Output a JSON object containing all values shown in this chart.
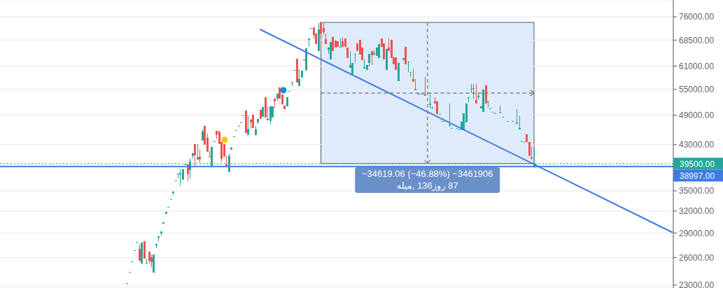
{
  "chart_data": {
    "type": "candlestick",
    "categories": [
      null,
      null,
      null,
      null,
      null,
      null,
      null,
      null,
      null,
      null,
      null,
      null,
      null,
      null,
      null,
      null,
      null,
      null,
      null,
      null,
      null,
      null,
      null,
      null,
      null,
      null,
      null,
      null,
      null,
      null,
      null,
      null,
      null,
      null,
      null,
      null,
      null,
      null,
      null,
      null,
      null,
      null,
      null,
      null,
      null,
      null,
      null,
      null,
      null,
      null,
      null,
      null,
      null,
      null,
      null,
      null,
      null,
      null,
      null,
      null,
      null,
      null,
      null,
      null,
      null,
      null,
      null,
      null,
      null,
      null,
      null,
      null,
      null,
      null,
      null,
      null,
      null,
      null,
      null,
      null,
      null,
      null,
      null,
      null,
      null,
      null,
      null,
      null,
      null,
      null,
      null,
      null,
      null,
      null,
      null,
      null,
      null,
      null,
      null,
      null,
      null,
      null,
      null,
      null,
      null,
      null,
      null,
      null,
      null,
      null,
      null,
      null,
      null,
      null,
      null,
      null,
      null,
      null,
      null,
      null,
      null,
      null,
      null,
      null,
      null,
      null,
      null,
      null,
      null,
      null,
      null,
      null,
      null,
      null,
      null,
      null,
      null,
      null,
      null,
      null,
      null,
      null,
      null,
      null,
      null,
      null,
      null,
      null,
      null,
      null,
      null,
      null,
      null,
      null,
      null,
      null,
      null,
      null,
      null,
      null,
      null,
      null,
      null,
      null,
      null,
      null,
      null,
      null,
      null,
      null,
      null,
      null,
      null,
      null,
      null,
      null,
      null,
      null,
      null,
      null,
      null,
      null,
      null,
      null,
      null,
      null,
      null,
      null,
      null,
      null,
      null,
      null,
      null,
      null,
      null,
      null,
      null,
      null,
      null,
      null,
      null,
      null,
      null,
      null,
      null,
      null,
      null,
      null,
      null,
      null,
      null,
      null,
      null,
      null,
      null,
      null,
      null,
      null,
      null,
      null,
      null,
      null,
      null,
      null,
      null,
      null,
      null,
      null,
      null,
      null,
      null,
      null,
      null,
      null,
      null,
      null,
      null,
      null,
      null,
      null,
      null,
      null,
      null,
      null,
      null,
      null,
      null,
      null,
      null,
      null,
      null,
      null,
      null,
      null,
      null,
      null,
      null,
      null,
      null,
      null,
      null,
      null,
      null,
      null,
      null,
      null,
      null,
      null,
      null,
      null,
      null,
      null,
      null,
      null,
      null,
      null,
      null,
      null
    ],
    "ohlc": [
      null,
      null,
      null,
      null,
      null,
      null,
      null,
      null,
      null,
      null,
      null,
      null,
      null,
      null,
      null,
      null,
      null,
      null,
      null,
      null,
      null,
      null,
      null,
      null,
      null,
      null,
      null,
      null,
      null,
      null,
      null,
      null,
      null,
      null,
      null,
      null,
      null,
      null,
      null,
      null,
      null,
      null,
      null,
      null,
      null,
      null,
      null,
      null,
      null,
      null,
      null,
      null,
      [
        23200,
        23200,
        23200,
        23200
      ],
      [
        24340,
        24340,
        24340,
        24340
      ],
      [
        25510,
        25510,
        25510,
        25510
      ],
      [
        26790,
        26790,
        26790,
        26790
      ],
      [
        27800,
        27800,
        27800,
        27800
      ],
      [
        27010,
        27520,
        25620,
        25620
      ],
      [
        25300,
        27780,
        25300,
        27780
      ],
      [
        27950,
        27950,
        25860,
        25860
      ],
      [
        25380,
        25860,
        25300,
        25400
      ],
      [
        26680,
        26680,
        25300,
        25620
      ],
      [
        26020,
        26350,
        24910,
        25460
      ],
      [
        24300,
        26350,
        24300,
        26350
      ],
      [
        27450,
        27610,
        27100,
        27610
      ],
      [
        28400,
        28570,
        27950,
        28570
      ],
      [
        28900,
        29200,
        28660,
        29200
      ],
      [
        30220,
        30410,
        30220,
        30410
      ],
      [
        31570,
        31870,
        31570,
        31870
      ],
      [
        32570,
        32570,
        32570,
        32570
      ],
      [
        33710,
        33710,
        33710,
        33710
      ],
      [
        34700,
        34880,
        34350,
        34880
      ],
      [
        36660,
        36660,
        36660,
        36660
      ],
      [
        37700,
        37820,
        37000,
        37820
      ],
      [
        37600,
        38540,
        35760,
        37820
      ],
      [
        36780,
        38540,
        36780,
        38540
      ],
      [
        39390,
        39390,
        39390,
        39390
      ],
      [
        39390,
        39390,
        36550,
        37700
      ],
      [
        38420,
        40510,
        36890,
        39880
      ],
      [
        40900,
        41400,
        40380,
        41400
      ],
      [
        43110,
        43110,
        39150,
        41020
      ],
      [
        40250,
        43110,
        40130,
        40640
      ],
      [
        40760,
        42050,
        39630,
        40250
      ],
      [
        43780,
        46030,
        43780,
        45600
      ],
      [
        46750,
        46750,
        42970,
        42970
      ],
      [
        44330,
        45170,
        41660,
        41660
      ],
      [
        40760,
        41790,
        40640,
        40640
      ],
      [
        38900,
        42570,
        38900,
        42570
      ],
      [
        43650,
        43650,
        43650,
        43650
      ],
      [
        45740,
        45740,
        44060,
        44890
      ],
      [
        45600,
        45600,
        43110,
        43110
      ],
      [
        43510,
        43510,
        39880,
        40380
      ],
      [
        43110,
        43110,
        40760,
        40760
      ],
      [
        39390,
        40890,
        39030,
        39030
      ],
      [
        38060,
        41270,
        38060,
        40890
      ],
      [
        42050,
        42440,
        42050,
        42440
      ],
      [
        44610,
        44610,
        44610,
        44610
      ],
      [
        45880,
        45880,
        45880,
        45880
      ],
      [
        46750,
        46750,
        46750,
        46750
      ],
      [
        47480,
        47480,
        47480,
        47480
      ],
      [
        48970,
        48970,
        48970,
        48970
      ],
      [
        50060,
        50060,
        45310,
        45310
      ],
      [
        44890,
        48970,
        44890,
        46030
      ],
      [
        48070,
        48070,
        46170,
        47480
      ],
      [
        49130,
        49130,
        46310,
        46310
      ],
      [
        44890,
        46750,
        44750,
        46030
      ],
      [
        47480,
        48220,
        47180,
        48220
      ],
      [
        50210,
        50210,
        48220,
        48220
      ],
      [
        48670,
        50840,
        48670,
        50840
      ],
      [
        53120,
        53120,
        48520,
        48520
      ],
      [
        47930,
        50840,
        47930,
        48220
      ],
      [
        47780,
        51000,
        47030,
        51000
      ],
      [
        48520,
        51000,
        48520,
        51000
      ],
      [
        52790,
        52790,
        50530,
        52140
      ],
      [
        52790,
        53950,
        52300,
        53950
      ],
      [
        55480,
        55480,
        52790,
        52790
      ],
      [
        53790,
        53790,
        51300,
        51470
      ],
      [
        51150,
        51150,
        50370,
        50370
      ],
      [
        51000,
        53120,
        51000,
        53120
      ],
      [
        54630,
        54630,
        54630,
        54630
      ],
      [
        56700,
        56880,
        55830,
        56880
      ],
      [
        59970,
        59970,
        59970,
        59970
      ],
      [
        63050,
        63050,
        56700,
        56700
      ],
      [
        55830,
        60170,
        55830,
        57600
      ],
      [
        57960,
        59780,
        57960,
        59780
      ],
      [
        62660,
        62860,
        62460,
        62860
      ],
      [
        59970,
        66050,
        59600,
        66050
      ],
      [
        68500,
        69000,
        66470,
        69000
      ],
      [
        72300,
        72300,
        72300,
        72300
      ],
      [
        72530,
        72530,
        69000,
        70090
      ],
      [
        70530,
        70530,
        67300,
        67300
      ],
      [
        65240,
        73900,
        65240,
        71860
      ],
      [
        74130,
        74130,
        70530,
        70530
      ],
      [
        72300,
        73900,
        70090,
        70970
      ],
      [
        68790,
        70530,
        67300,
        67300
      ],
      [
        65650,
        66260,
        64500,
        66260
      ],
      [
        62850,
        67940,
        62850,
        67940
      ],
      [
        69460,
        69460,
        65240,
        65240
      ],
      [
        68360,
        68360,
        66260,
        66260
      ],
      [
        68150,
        68150,
        66470,
        66470
      ],
      [
        66260,
        69000,
        66260,
        66470
      ],
      [
        68150,
        69460,
        66470,
        66470
      ],
      [
        69000,
        69000,
        66470,
        66470
      ],
      [
        66260,
        66260,
        63240,
        63240
      ],
      [
        60540,
        65240,
        60540,
        61300
      ],
      [
        58860,
        61870,
        58860,
        61870
      ],
      [
        64200,
        64500,
        61870,
        64500
      ],
      [
        67510,
        67510,
        65240,
        65240
      ],
      [
        68580,
        68580,
        64300,
        64300
      ],
      [
        66260,
        66260,
        62660,
        62660
      ],
      [
        60360,
        62850,
        60360,
        60730
      ],
      [
        59970,
        61300,
        59970,
        61300
      ],
      [
        61870,
        64500,
        60920,
        64500
      ],
      [
        65240,
        65240,
        61300,
        64030
      ],
      [
        64300,
        65440,
        64100,
        64700
      ],
      [
        63830,
        66260,
        63830,
        66260
      ],
      [
        63240,
        67300,
        63240,
        67300
      ],
      [
        69000,
        69000,
        66470,
        66470
      ],
      [
        67510,
        67510,
        62850,
        62850
      ],
      [
        59970,
        65850,
        59970,
        65850
      ],
      [
        66260,
        69000,
        65240,
        65240
      ],
      [
        68580,
        68580,
        63240,
        63240
      ],
      [
        63430,
        63430,
        61490,
        61490
      ],
      [
        63430,
        63430,
        59970,
        59970
      ],
      [
        57070,
        61870,
        57070,
        61870
      ],
      null,
      [
        62900,
        63240,
        62460,
        63240
      ],
      [
        66470,
        66470,
        61490,
        61490
      ],
      [
        62000,
        62260,
        59420,
        62260
      ],
      [
        59200,
        59420,
        58140,
        59420
      ],
      [
        57600,
        60170,
        56880,
        56880
      ],
      [
        55140,
        57600,
        54800,
        54800
      ],
      [
        53790,
        53790,
        53790,
        53790
      ],
      [
        53790,
        53790,
        53790,
        53790
      ],
      [
        53790,
        53790,
        53790,
        53790
      ],
      [
        53790,
        58140,
        53450,
        53450
      ],
      null,
      [
        51320,
        54130,
        50530,
        51650
      ],
      [
        50840,
        50840,
        50370,
        50840
      ],
      [
        52140,
        53120,
        51650,
        51650
      ],
      [
        52140,
        52140,
        49290,
        49290
      ],
      [
        49290,
        49290,
        49290,
        49290
      ],
      [
        47780,
        47780,
        47780,
        47780
      ],
      [
        47780,
        47780,
        47780,
        47780
      ],
      null,
      [
        46750,
        51650,
        46750,
        47030
      ],
      [
        46310,
        46310,
        46310,
        46310
      ],
      null,
      [
        46310,
        46310,
        46310,
        46310
      ],
      [
        46030,
        46030,
        46030,
        46030
      ],
      [
        45880,
        47630,
        45880,
        47630
      ],
      [
        46030,
        49440,
        46030,
        49440
      ],
      [
        47480,
        51650,
        47480,
        51650
      ],
      [
        52900,
        53120,
        51970,
        53120
      ],
      [
        54970,
        56360,
        54130,
        55140
      ],
      [
        55140,
        56360,
        52790,
        55310
      ],
      [
        52460,
        56360,
        51650,
        51650
      ],
      [
        53200,
        54130,
        52630,
        53450
      ],
      [
        50530,
        51000,
        50530,
        51000
      ],
      [
        49750,
        54970,
        49750,
        54970
      ],
      [
        56010,
        56010,
        51650,
        51650
      ],
      [
        52000,
        52140,
        50840,
        52140
      ],
      [
        50530,
        50530,
        50530,
        50530
      ],
      [
        49750,
        49750,
        49750,
        49750
      ],
      [
        49440,
        49440,
        49440,
        49440
      ],
      null,
      [
        49440,
        51150,
        49440,
        49590
      ],
      [
        48670,
        48670,
        48670,
        48670
      ],
      null,
      [
        47780,
        47780,
        47780,
        47780
      ],
      null,
      [
        47780,
        47780,
        47780,
        47780
      ],
      null,
      [
        47180,
        50370,
        47180,
        47480
      ],
      [
        46030,
        48970,
        46030,
        46310
      ],
      [
        43510,
        43650,
        43510,
        43650
      ],
      [
        43510,
        43510,
        43510,
        43510
      ],
      [
        45030,
        45030,
        43510,
        43510
      ],
      [
        43510,
        43510,
        40890,
        40890
      ],
      [
        40640,
        42570,
        40250,
        40380
      ],
      [
        38900,
        42570,
        38780,
        39500
      ],
      null,
      null,
      null,
      null,
      null,
      null,
      null,
      null,
      null,
      null,
      null,
      null,
      null,
      null,
      null,
      null,
      null,
      null,
      null,
      null,
      null,
      null,
      null,
      null,
      null,
      null,
      null,
      null,
      null,
      null,
      null,
      null,
      null,
      null,
      null,
      null,
      null,
      null,
      null,
      null,
      null,
      null,
      null,
      null,
      null,
      null,
      null,
      null,
      null,
      null,
      null,
      null,
      null,
      null,
      null,
      null,
      null
    ],
    "colors": [
      null,
      null,
      null,
      null,
      null,
      null,
      null,
      null,
      null,
      null,
      null,
      null,
      null,
      null,
      null,
      null,
      null,
      null,
      null,
      null,
      null,
      null,
      null,
      null,
      null,
      null,
      null,
      null,
      null,
      null,
      null,
      null,
      null,
      null,
      null,
      null,
      null,
      null,
      null,
      null,
      null,
      null,
      null,
      null,
      null,
      null,
      null,
      null,
      null,
      null,
      null,
      null,
      "#26a69a",
      "#26a69a",
      "#26a69a",
      "#26a69a",
      "#26a69a",
      "#ef5350",
      "#26a69a",
      "#ef5350",
      "#26a69a",
      "#ef5350",
      "#ef5350",
      "#26a69a",
      "#26a69a",
      "#26a69a",
      "#26a69a",
      "#26a69a",
      "#26a69a",
      "#26a69a",
      "#26a69a",
      "#26a69a",
      "#26a69a",
      "#26a69a",
      "#26a69a",
      "#26a69a",
      "#26a69a",
      "#ef5350",
      "#26a69a",
      "#26a69a",
      "#ef5350",
      "#26a69a",
      "#ef5350",
      "#26a69a",
      "#ef5350",
      "#ef5350",
      "#ef5350",
      "#26a69a",
      "#26a69a",
      "#ef5350",
      "#ef5350",
      "#ef5350",
      "#ef5350",
      "#ef5350",
      "#26a69a",
      "#26a69a",
      "#26a69a",
      "#26a69a",
      "#26a69a",
      "#26a69a",
      "#26a69a",
      "#ef5350",
      "#26a69a",
      "#ef5350",
      "#ef5350",
      "#26a69a",
      "#26a69a",
      "#ef5350",
      "#26a69a",
      "#ef5350",
      "#26a69a",
      "#26a69a",
      "#26a69a",
      "#ef5350",
      "#26a69a",
      "#ef5350",
      "#ef5350",
      "#ef5350",
      "#26a69a",
      "#26a69a",
      "#26a69a",
      "#26a69a",
      "#ef5350",
      "#26a69a",
      "#26a69a",
      "#26a69a",
      "#26a69a",
      "#26a69a",
      "#26a69a",
      "#ef5350",
      "#ef5350",
      "#26a69a",
      "#ef5350",
      "#ef5350",
      "#ef5350",
      "#26a69a",
      "#26a69a",
      "#ef5350",
      "#ef5350",
      "#ef5350",
      "#26a69a",
      "#ef5350",
      "#ef5350",
      "#ef5350",
      "#26a69a",
      "#26a69a",
      "#26a69a",
      "#ef5350",
      "#ef5350",
      "#ef5350",
      "#26a69a",
      "#26a69a",
      "#26a69a",
      "#ef5350",
      "#26a69a",
      "#26a69a",
      "#26a69a",
      "#ef5350",
      "#ef5350",
      "#26a69a",
      "#ef5350",
      "#ef5350",
      "#ef5350",
      "#ef5350",
      "#26a69a",
      null,
      "#26a69a",
      "#ef5350",
      "#26a69a",
      "#26a69a",
      "#ef5350",
      "#ef5350",
      "#26a69a",
      "#26a69a",
      "#26a69a",
      "#ef5350",
      null,
      "#26a69a",
      "#26a69a",
      "#ef5350",
      "#ef5350",
      "#26a69a",
      "#26a69a",
      "#26a69a",
      null,
      "#26a69a",
      "#26a69a",
      null,
      "#26a69a",
      "#26a69a",
      "#26a69a",
      "#26a69a",
      "#26a69a",
      "#26a69a",
      "#26a69a",
      "#26a69a",
      "#ef5350",
      "#26a69a",
      "#26a69a",
      "#26a69a",
      "#ef5350",
      "#26a69a",
      "#26a69a",
      "#26a69a",
      "#26a69a",
      null,
      "#26a69a",
      "#26a69a",
      null,
      "#26a69a",
      null,
      "#26a69a",
      null,
      "#26a69a",
      "#26a69a",
      "#26a69a",
      "#26a69a",
      "#ef5350",
      "#ef5350",
      "#ef5350",
      "#26a69a",
      null,
      null,
      null,
      null,
      null,
      null,
      null,
      null,
      null,
      null,
      null,
      null,
      null,
      null,
      null,
      null,
      null,
      null,
      null,
      null,
      null,
      null,
      null,
      null,
      null,
      null,
      null,
      null,
      null,
      null,
      null,
      null,
      null,
      null,
      null,
      null,
      null,
      null,
      null,
      null,
      null,
      null,
      null,
      null,
      null,
      null,
      null,
      null,
      null,
      null,
      null,
      null,
      null,
      null,
      null,
      null,
      null
    ],
    "series": [
      {
        "type": "line",
        "color": "#3f7be3",
        "values": [
          null,
          null,
          null,
          null,
          null,
          null,
          null,
          null,
          null,
          null,
          null,
          null,
          null,
          null,
          null,
          null,
          null,
          null,
          null,
          null,
          null,
          null,
          null,
          null,
          null,
          null,
          null,
          null,
          null,
          null,
          null,
          null,
          null,
          null,
          null,
          null,
          null,
          null,
          null,
          null,
          null,
          null,
          null,
          null,
          null,
          null,
          null,
          null,
          null,
          null,
          null,
          null,
          null,
          null,
          null,
          null,
          null,
          null,
          null,
          null,
          null,
          null,
          null,
          null,
          null,
          null,
          null,
          null,
          null,
          null,
          null,
          null,
          null,
          null,
          null,
          null,
          null,
          null,
          null,
          null,
          null,
          null,
          null,
          null,
          null,
          null,
          null,
          null,
          null,
          null,
          null,
          null,
          null,
          null,
          null,
          null,
          null,
          null,
          null,
          null,
          null,
          null,
          null,
          null,
          null,
          null,
          null,
          71800,
          null,
          null,
          null,
          null,
          null,
          null,
          null,
          null,
          null,
          null,
          null,
          null,
          null,
          null,
          null,
          null,
          null,
          null,
          null,
          null,
          null,
          null,
          null,
          null,
          null,
          null,
          null,
          null,
          null,
          null,
          null,
          null,
          null,
          null,
          null,
          null,
          null,
          null,
          null,
          null,
          null,
          null,
          null,
          null,
          null,
          null,
          null,
          null,
          null,
          null,
          null,
          null,
          null,
          null,
          null,
          null,
          null,
          null,
          null,
          null,
          null,
          null,
          null,
          null,
          null,
          null,
          null,
          null,
          null,
          null,
          null,
          null,
          null,
          null,
          null,
          null,
          null,
          null,
          null,
          null,
          null,
          null,
          null,
          null,
          null,
          null,
          null,
          null,
          null,
          null,
          null,
          null,
          null,
          null,
          null,
          null,
          null,
          null,
          null,
          null,
          null,
          null,
          null,
          null,
          null,
          null,
          null,
          null,
          null,
          null,
          null,
          null,
          null,
          null,
          null,
          null,
          null,
          null,
          null,
          null,
          null,
          null,
          null,
          null,
          null,
          null,
          null,
          null,
          null,
          null,
          null,
          null,
          null,
          null,
          null,
          null,
          null,
          null,
          null,
          null,
          null,
          null,
          null,
          null,
          null,
          null,
          null,
          null,
          null,
          null,
          null,
          null,
          null,
          null,
          null,
          null,
          null,
          null,
          null,
          null,
          null,
          null,
          null,
          null,
          null,
          null,
          null,
          null,
          null,
          29100
        ]
      }
    ],
    "log": true,
    "ylim": [
      22700,
      81900
    ],
    "yticks": [
      {
        "value": 23000,
        "label": "23000.00"
      },
      {
        "value": 26000,
        "label": "26000.00"
      },
      {
        "value": 29000,
        "label": "29000.00"
      },
      {
        "value": 32000,
        "label": "32000.00"
      },
      {
        "value": 35000,
        "label": "35000.00"
      },
      {
        "value": 43000,
        "label": "43000.00"
      },
      {
        "value": 49000,
        "label": "49000.00"
      },
      {
        "value": 55000,
        "label": "55000.00"
      },
      {
        "value": 61000,
        "label": "61000.00"
      },
      {
        "value": 68500,
        "label": "68500.00"
      },
      {
        "value": 76000,
        "label": "76000.00"
      }
    ],
    "grid": "y",
    "ref_lines": [
      {
        "axis": "y",
        "value": 39500,
        "label": "39500.00",
        "color": "#26a69a",
        "line_style": "dotted"
      },
      {
        "axis": "y",
        "value": 38997,
        "label": "38997.00",
        "color": "#3f7be3",
        "line_style": "solid"
      }
    ],
    "annotations": [
      "−34619.06 (−46.88%) −3461906",
      "87 روز136 ,میله"
    ]
  }
}
